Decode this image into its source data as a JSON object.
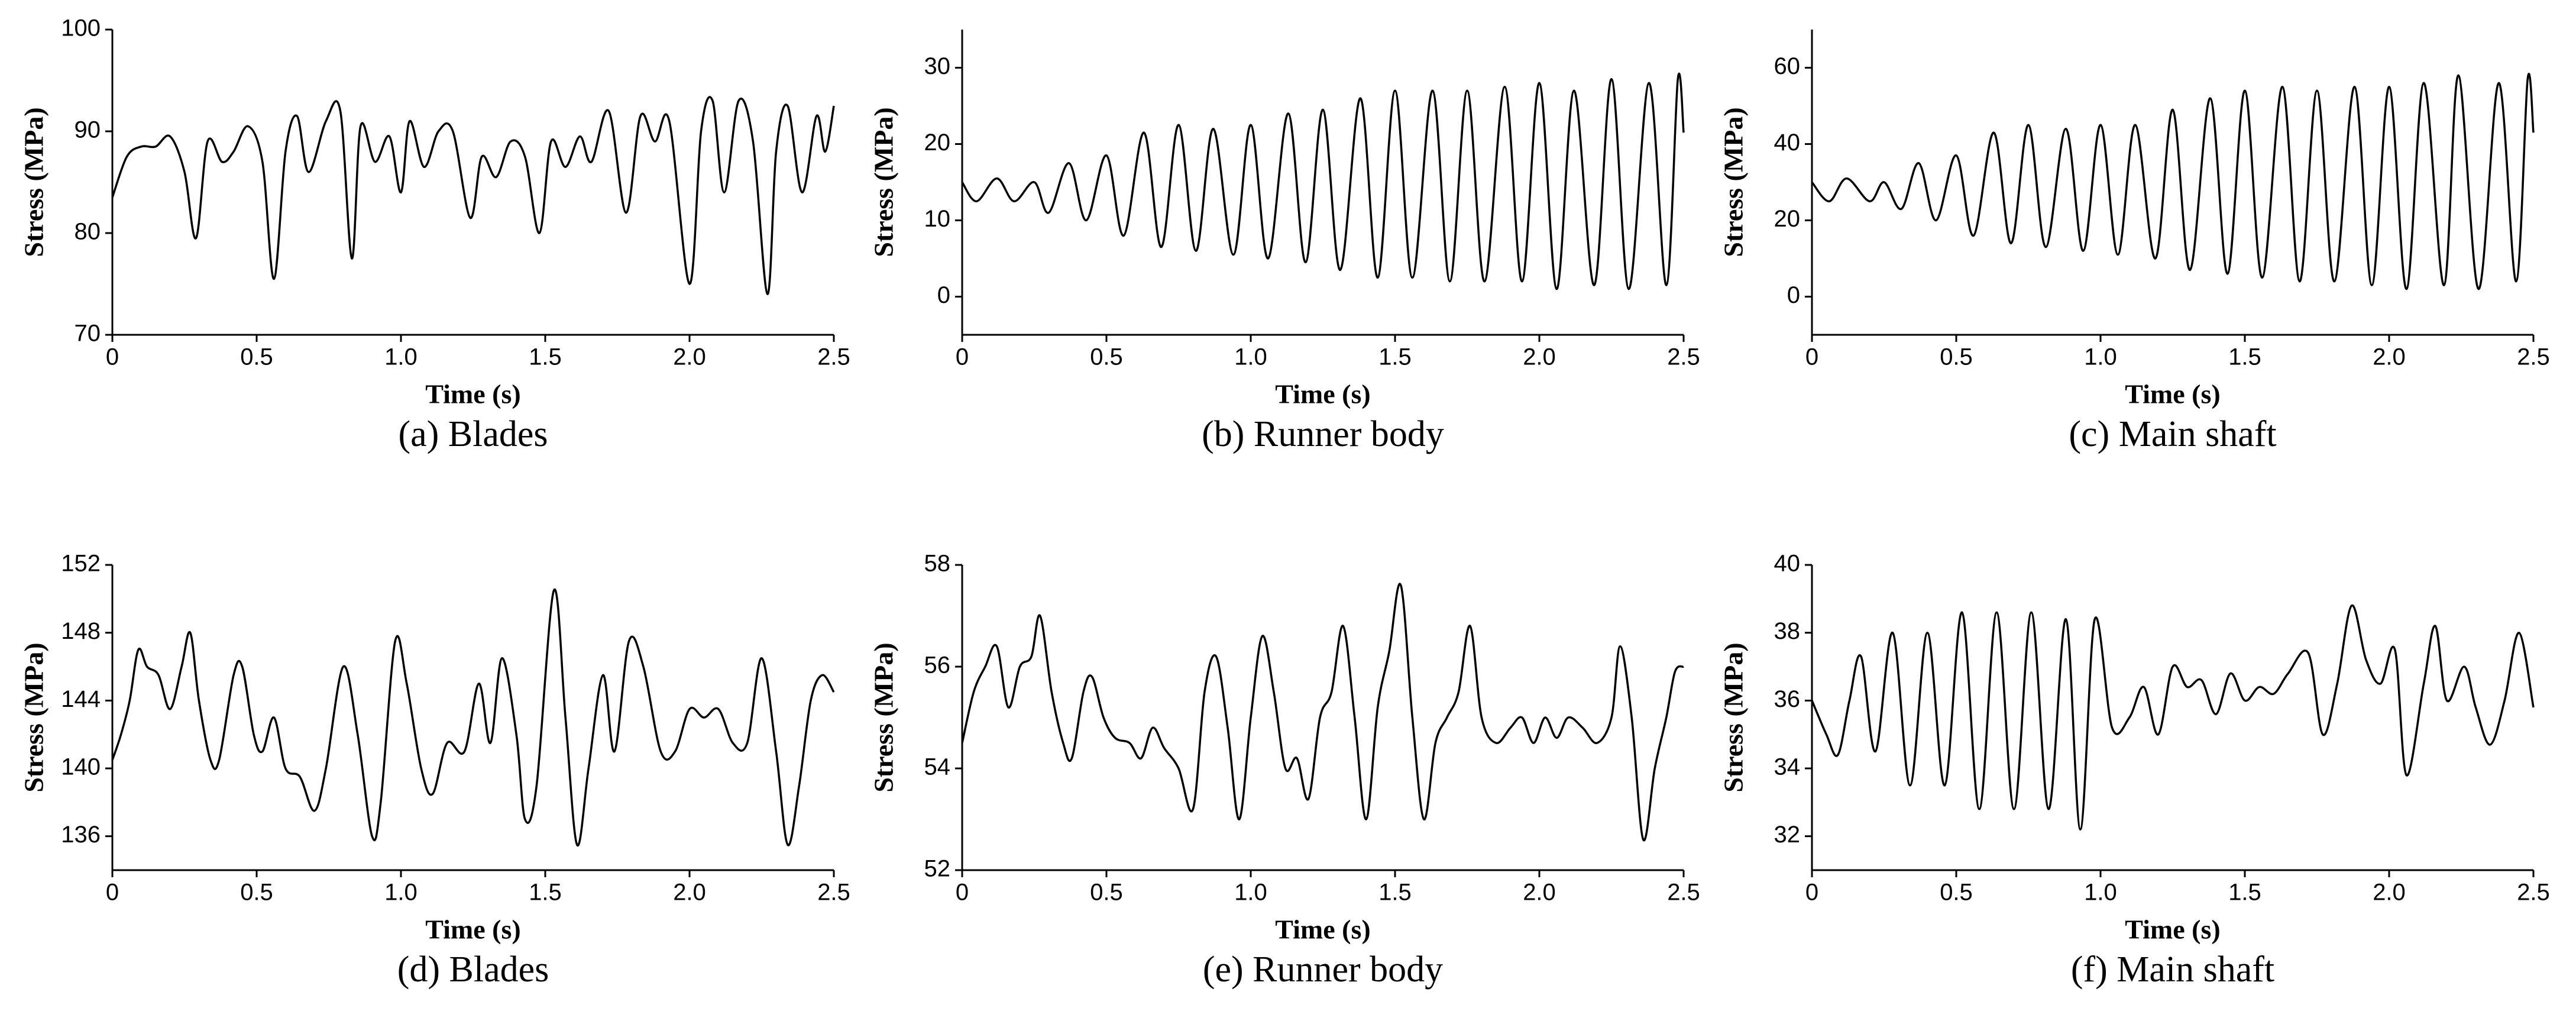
{
  "chart_data": [
    {
      "type": "line",
      "caption": "(a) Blades",
      "xlabel": "Time (s)",
      "ylabel": "Stress (MPa)",
      "color": "#000000",
      "xlim": [
        0,
        2.5
      ],
      "xticks": [
        0,
        0.5,
        {
          "value": 1,
          "label": "1.0"
        },
        1.5,
        {
          "value": 2,
          "label": "2.0"
        },
        2.5
      ],
      "ylim": [
        70,
        100
      ],
      "yticks": [
        70,
        80,
        90,
        100
      ],
      "x": [
        0,
        0.05,
        0.1,
        0.15,
        0.2,
        0.25,
        0.29,
        0.33,
        0.38,
        0.42,
        0.47,
        0.52,
        0.56,
        0.6,
        0.64,
        0.68,
        0.74,
        0.79,
        0.83,
        0.86,
        0.91,
        0.96,
        1.0,
        1.03,
        1.08,
        1.13,
        1.18,
        1.24,
        1.28,
        1.33,
        1.38,
        1.43,
        1.48,
        1.52,
        1.57,
        1.62,
        1.66,
        1.72,
        1.78,
        1.83,
        1.88,
        1.93,
        2.0,
        2.04,
        2.08,
        2.12,
        2.17,
        2.22,
        2.27,
        2.3,
        2.34,
        2.39,
        2.44,
        2.47,
        2.5
      ],
      "values": [
        83.5,
        87.5,
        88.5,
        88.5,
        89.5,
        86,
        79.5,
        89,
        87,
        88,
        90.5,
        87,
        75.5,
        88,
        91.5,
        86,
        91,
        92,
        77.5,
        90.5,
        87,
        89.5,
        84,
        91,
        86.5,
        90,
        90,
        81.5,
        87.5,
        85.5,
        89,
        87.5,
        80,
        89,
        86.5,
        89.5,
        87,
        92,
        82,
        91.5,
        89,
        91,
        75,
        90,
        93,
        84,
        93,
        89,
        74,
        88,
        92.5,
        84,
        91.5,
        88,
        92.5
      ]
    },
    {
      "type": "line",
      "caption": "(b) Runner body",
      "xlabel": "Time (s)",
      "ylabel": "Stress (MPa)",
      "color": "#000000",
      "xlim": [
        0,
        2.5
      ],
      "xticks": [
        0,
        0.5,
        {
          "value": 1,
          "label": "1.0"
        },
        1.5,
        {
          "value": 2,
          "label": "2.0"
        },
        2.5
      ],
      "ylim": [
        -5,
        35
      ],
      "yticks": [
        0,
        10,
        20,
        30
      ],
      "x": [
        0,
        0.05,
        0.12,
        0.18,
        0.25,
        0.3,
        0.37,
        0.43,
        0.5,
        0.56,
        0.63,
        0.69,
        0.75,
        0.81,
        0.87,
        0.94,
        1.0,
        1.06,
        1.13,
        1.19,
        1.25,
        1.31,
        1.38,
        1.44,
        1.5,
        1.56,
        1.63,
        1.69,
        1.75,
        1.81,
        1.88,
        1.94,
        2.0,
        2.06,
        2.12,
        2.19,
        2.25,
        2.31,
        2.38,
        2.44,
        2.48,
        2.5
      ],
      "values": [
        15,
        12.5,
        15.5,
        12.5,
        15,
        11,
        17.5,
        10,
        18.5,
        8,
        21.5,
        6.5,
        22.5,
        6,
        22,
        5.5,
        22.5,
        5,
        24,
        4.5,
        24.5,
        3.5,
        26,
        2.5,
        27,
        2.5,
        27,
        2,
        27,
        2,
        27.5,
        2,
        28,
        1,
        27,
        1.5,
        28.5,
        1,
        28,
        1.5,
        28.5,
        21.5
      ]
    },
    {
      "type": "line",
      "caption": "(c) Main shaft",
      "xlabel": "Time (s)",
      "ylabel": "Stress (MPa)",
      "color": "#000000",
      "xlim": [
        0,
        2.5
      ],
      "xticks": [
        0,
        0.5,
        {
          "value": 1,
          "label": "1.0"
        },
        1.5,
        {
          "value": 2,
          "label": "2.0"
        },
        2.5
      ],
      "ylim": [
        -10,
        70
      ],
      "yticks": [
        0,
        20,
        40,
        60
      ],
      "x": [
        0,
        0.06,
        0.12,
        0.2,
        0.25,
        0.31,
        0.37,
        0.43,
        0.5,
        0.56,
        0.63,
        0.69,
        0.75,
        0.81,
        0.88,
        0.94,
        1.0,
        1.06,
        1.12,
        1.19,
        1.25,
        1.31,
        1.38,
        1.44,
        1.5,
        1.56,
        1.63,
        1.69,
        1.75,
        1.81,
        1.88,
        1.94,
        2.0,
        2.06,
        2.12,
        2.19,
        2.24,
        2.31,
        2.38,
        2.44,
        2.48,
        2.5
      ],
      "values": [
        30,
        25,
        31,
        25,
        30,
        23,
        35,
        20,
        37,
        16,
        43,
        14,
        45,
        13,
        44,
        12,
        45,
        11,
        45,
        10,
        49,
        7,
        52,
        6,
        54,
        5,
        55,
        4,
        54,
        4,
        55,
        3,
        55,
        2,
        56,
        3,
        58,
        2,
        56,
        4,
        57,
        43
      ]
    },
    {
      "type": "line",
      "caption": "(d) Blades",
      "xlabel": "Time (s)",
      "ylabel": "Stress (MPa)",
      "color": "#000000",
      "xlim": [
        0,
        2.5
      ],
      "xticks": [
        0,
        0.5,
        {
          "value": 1,
          "label": "1.0"
        },
        1.5,
        {
          "value": 2,
          "label": "2.0"
        },
        2.5
      ],
      "ylim": [
        134,
        152
      ],
      "yticks": [
        136,
        140,
        144,
        148,
        152
      ],
      "x": [
        0,
        0.03,
        0.06,
        0.09,
        0.12,
        0.16,
        0.2,
        0.24,
        0.27,
        0.3,
        0.34,
        0.37,
        0.42,
        0.45,
        0.49,
        0.52,
        0.56,
        0.6,
        0.65,
        0.7,
        0.74,
        0.8,
        0.85,
        0.9,
        0.93,
        0.98,
        1.02,
        1.07,
        1.11,
        1.16,
        1.22,
        1.27,
        1.31,
        1.35,
        1.4,
        1.43,
        1.47,
        1.53,
        1.57,
        1.61,
        1.65,
        1.7,
        1.74,
        1.79,
        1.84,
        1.9,
        1.95,
        2.0,
        2.05,
        2.1,
        2.15,
        2.2,
        2.25,
        2.3,
        2.34,
        2.38,
        2.42,
        2.46,
        2.5
      ],
      "values": [
        140.5,
        142,
        144,
        147,
        146,
        145.5,
        143.5,
        146,
        148,
        144,
        140.5,
        140.5,
        145.5,
        146,
        142,
        141,
        143,
        140,
        139.5,
        137.5,
        140,
        146,
        142,
        136,
        138,
        147.5,
        145,
        140,
        138.5,
        141.5,
        141,
        145,
        141.5,
        146.5,
        142,
        137,
        139,
        150.5,
        143,
        135.5,
        140,
        145.5,
        141,
        147.5,
        146,
        141,
        141,
        143.5,
        143,
        143.5,
        141.5,
        141.5,
        146.5,
        141,
        135.5,
        139,
        144,
        145.5,
        144.5
      ]
    },
    {
      "type": "line",
      "caption": "(e) Runner body",
      "xlabel": "Time (s)",
      "ylabel": "Stress (MPa)",
      "color": "#000000",
      "xlim": [
        0,
        2.5
      ],
      "xticks": [
        0,
        0.5,
        {
          "value": 1,
          "label": "1.0"
        },
        1.5,
        {
          "value": 2,
          "label": "2.0"
        },
        2.5
      ],
      "ylim": [
        52,
        58
      ],
      "yticks": [
        52,
        54,
        56,
        58
      ],
      "x": [
        0,
        0.04,
        0.08,
        0.12,
        0.16,
        0.2,
        0.24,
        0.27,
        0.31,
        0.35,
        0.38,
        0.42,
        0.45,
        0.49,
        0.53,
        0.58,
        0.62,
        0.66,
        0.7,
        0.75,
        0.8,
        0.84,
        0.88,
        0.92,
        0.96,
        1.0,
        1.04,
        1.08,
        1.12,
        1.16,
        1.2,
        1.24,
        1.28,
        1.32,
        1.36,
        1.4,
        1.44,
        1.48,
        1.52,
        1.56,
        1.6,
        1.64,
        1.68,
        1.72,
        1.76,
        1.8,
        1.85,
        1.9,
        1.94,
        1.98,
        2.02,
        2.06,
        2.1,
        2.15,
        2.2,
        2.25,
        2.28,
        2.32,
        2.36,
        2.4,
        2.44,
        2.47,
        2.5
      ],
      "values": [
        54.5,
        55.5,
        56,
        56.4,
        55.2,
        56,
        56.2,
        57,
        55.5,
        54.5,
        54.2,
        55.5,
        55.8,
        55,
        54.6,
        54.5,
        54.2,
        54.8,
        54.4,
        54,
        53.2,
        55.5,
        56.2,
        54.8,
        53,
        55,
        56.6,
        55.5,
        54,
        54.2,
        53.4,
        55,
        55.5,
        56.8,
        55,
        53,
        55.2,
        56.3,
        57.6,
        55,
        53,
        54.5,
        55,
        55.5,
        56.8,
        55,
        54.5,
        54.8,
        55,
        54.5,
        55,
        54.6,
        55,
        54.8,
        54.5,
        55,
        56.4,
        55,
        52.6,
        54,
        55,
        55.9,
        56
      ]
    },
    {
      "type": "line",
      "caption": "(f) Main shaft",
      "xlabel": "Time (s)",
      "ylabel": "Stress (MPa)",
      "color": "#000000",
      "xlim": [
        0,
        2.5
      ],
      "xticks": [
        0,
        0.5,
        {
          "value": 1,
          "label": "1.0"
        },
        1.5,
        {
          "value": 2,
          "label": "2.0"
        },
        2.5
      ],
      "ylim": [
        31,
        40
      ],
      "yticks": [
        32,
        34,
        36,
        38,
        40
      ],
      "x": [
        0,
        0.05,
        0.09,
        0.13,
        0.17,
        0.22,
        0.28,
        0.34,
        0.4,
        0.46,
        0.52,
        0.58,
        0.64,
        0.7,
        0.76,
        0.82,
        0.88,
        0.93,
        0.98,
        1.04,
        1.1,
        1.15,
        1.2,
        1.25,
        1.3,
        1.35,
        1.4,
        1.45,
        1.5,
        1.55,
        1.6,
        1.65,
        1.72,
        1.77,
        1.82,
        1.87,
        1.92,
        1.97,
        2.02,
        2.06,
        2.12,
        2.16,
        2.2,
        2.26,
        2.3,
        2.35,
        2.4,
        2.45,
        2.5
      ],
      "values": [
        36,
        35,
        34.4,
        36,
        37.3,
        34.5,
        38,
        33.5,
        38,
        33.5,
        38.6,
        32.8,
        38.6,
        32.8,
        38.6,
        32.8,
        38.4,
        32.2,
        38.4,
        35.2,
        35.5,
        36.4,
        35,
        37,
        36.4,
        36.6,
        35.6,
        36.8,
        36,
        36.4,
        36.2,
        36.8,
        37.4,
        35,
        36.5,
        38.8,
        37.2,
        36.5,
        37.5,
        33.8,
        36.5,
        38.2,
        36,
        37,
        35.8,
        34.7,
        36,
        38,
        35.8
      ]
    }
  ]
}
